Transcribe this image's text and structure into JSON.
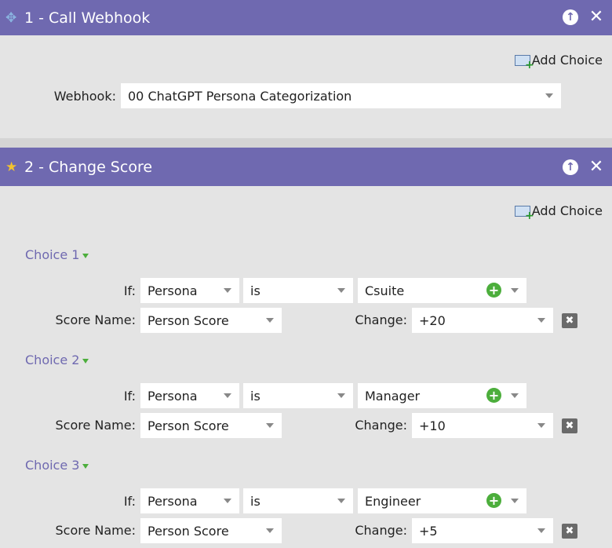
{
  "steps": [
    {
      "title": "1 - Call Webhook",
      "icon": "webhook-icon",
      "add_choice": "Add Choice",
      "webhook_label": "Webhook:",
      "webhook_value": "00 ChatGPT Persona Categorization"
    },
    {
      "title": "2 - Change Score",
      "icon": "star-icon",
      "add_choice": "Add Choice",
      "choices": [
        {
          "label": "Choice 1",
          "if_label": "If:",
          "field": "Persona",
          "operator": "is",
          "value": "Csuite",
          "score_label": "Score Name:",
          "score_name": "Person Score",
          "change_label": "Change:",
          "change": "+20"
        },
        {
          "label": "Choice 2",
          "if_label": "If:",
          "field": "Persona",
          "operator": "is",
          "value": "Manager",
          "score_label": "Score Name:",
          "score_name": "Person Score",
          "change_label": "Change:",
          "change": "+10"
        },
        {
          "label": "Choice 3",
          "if_label": "If:",
          "field": "Persona",
          "operator": "is",
          "value": "Engineer",
          "score_label": "Score Name:",
          "score_name": "Person Score",
          "change_label": "Change:",
          "change": "+5"
        }
      ]
    }
  ],
  "colors": {
    "header": "#6f69b0",
    "body": "#e4e4e4",
    "accent_green": "#4cae3c"
  }
}
